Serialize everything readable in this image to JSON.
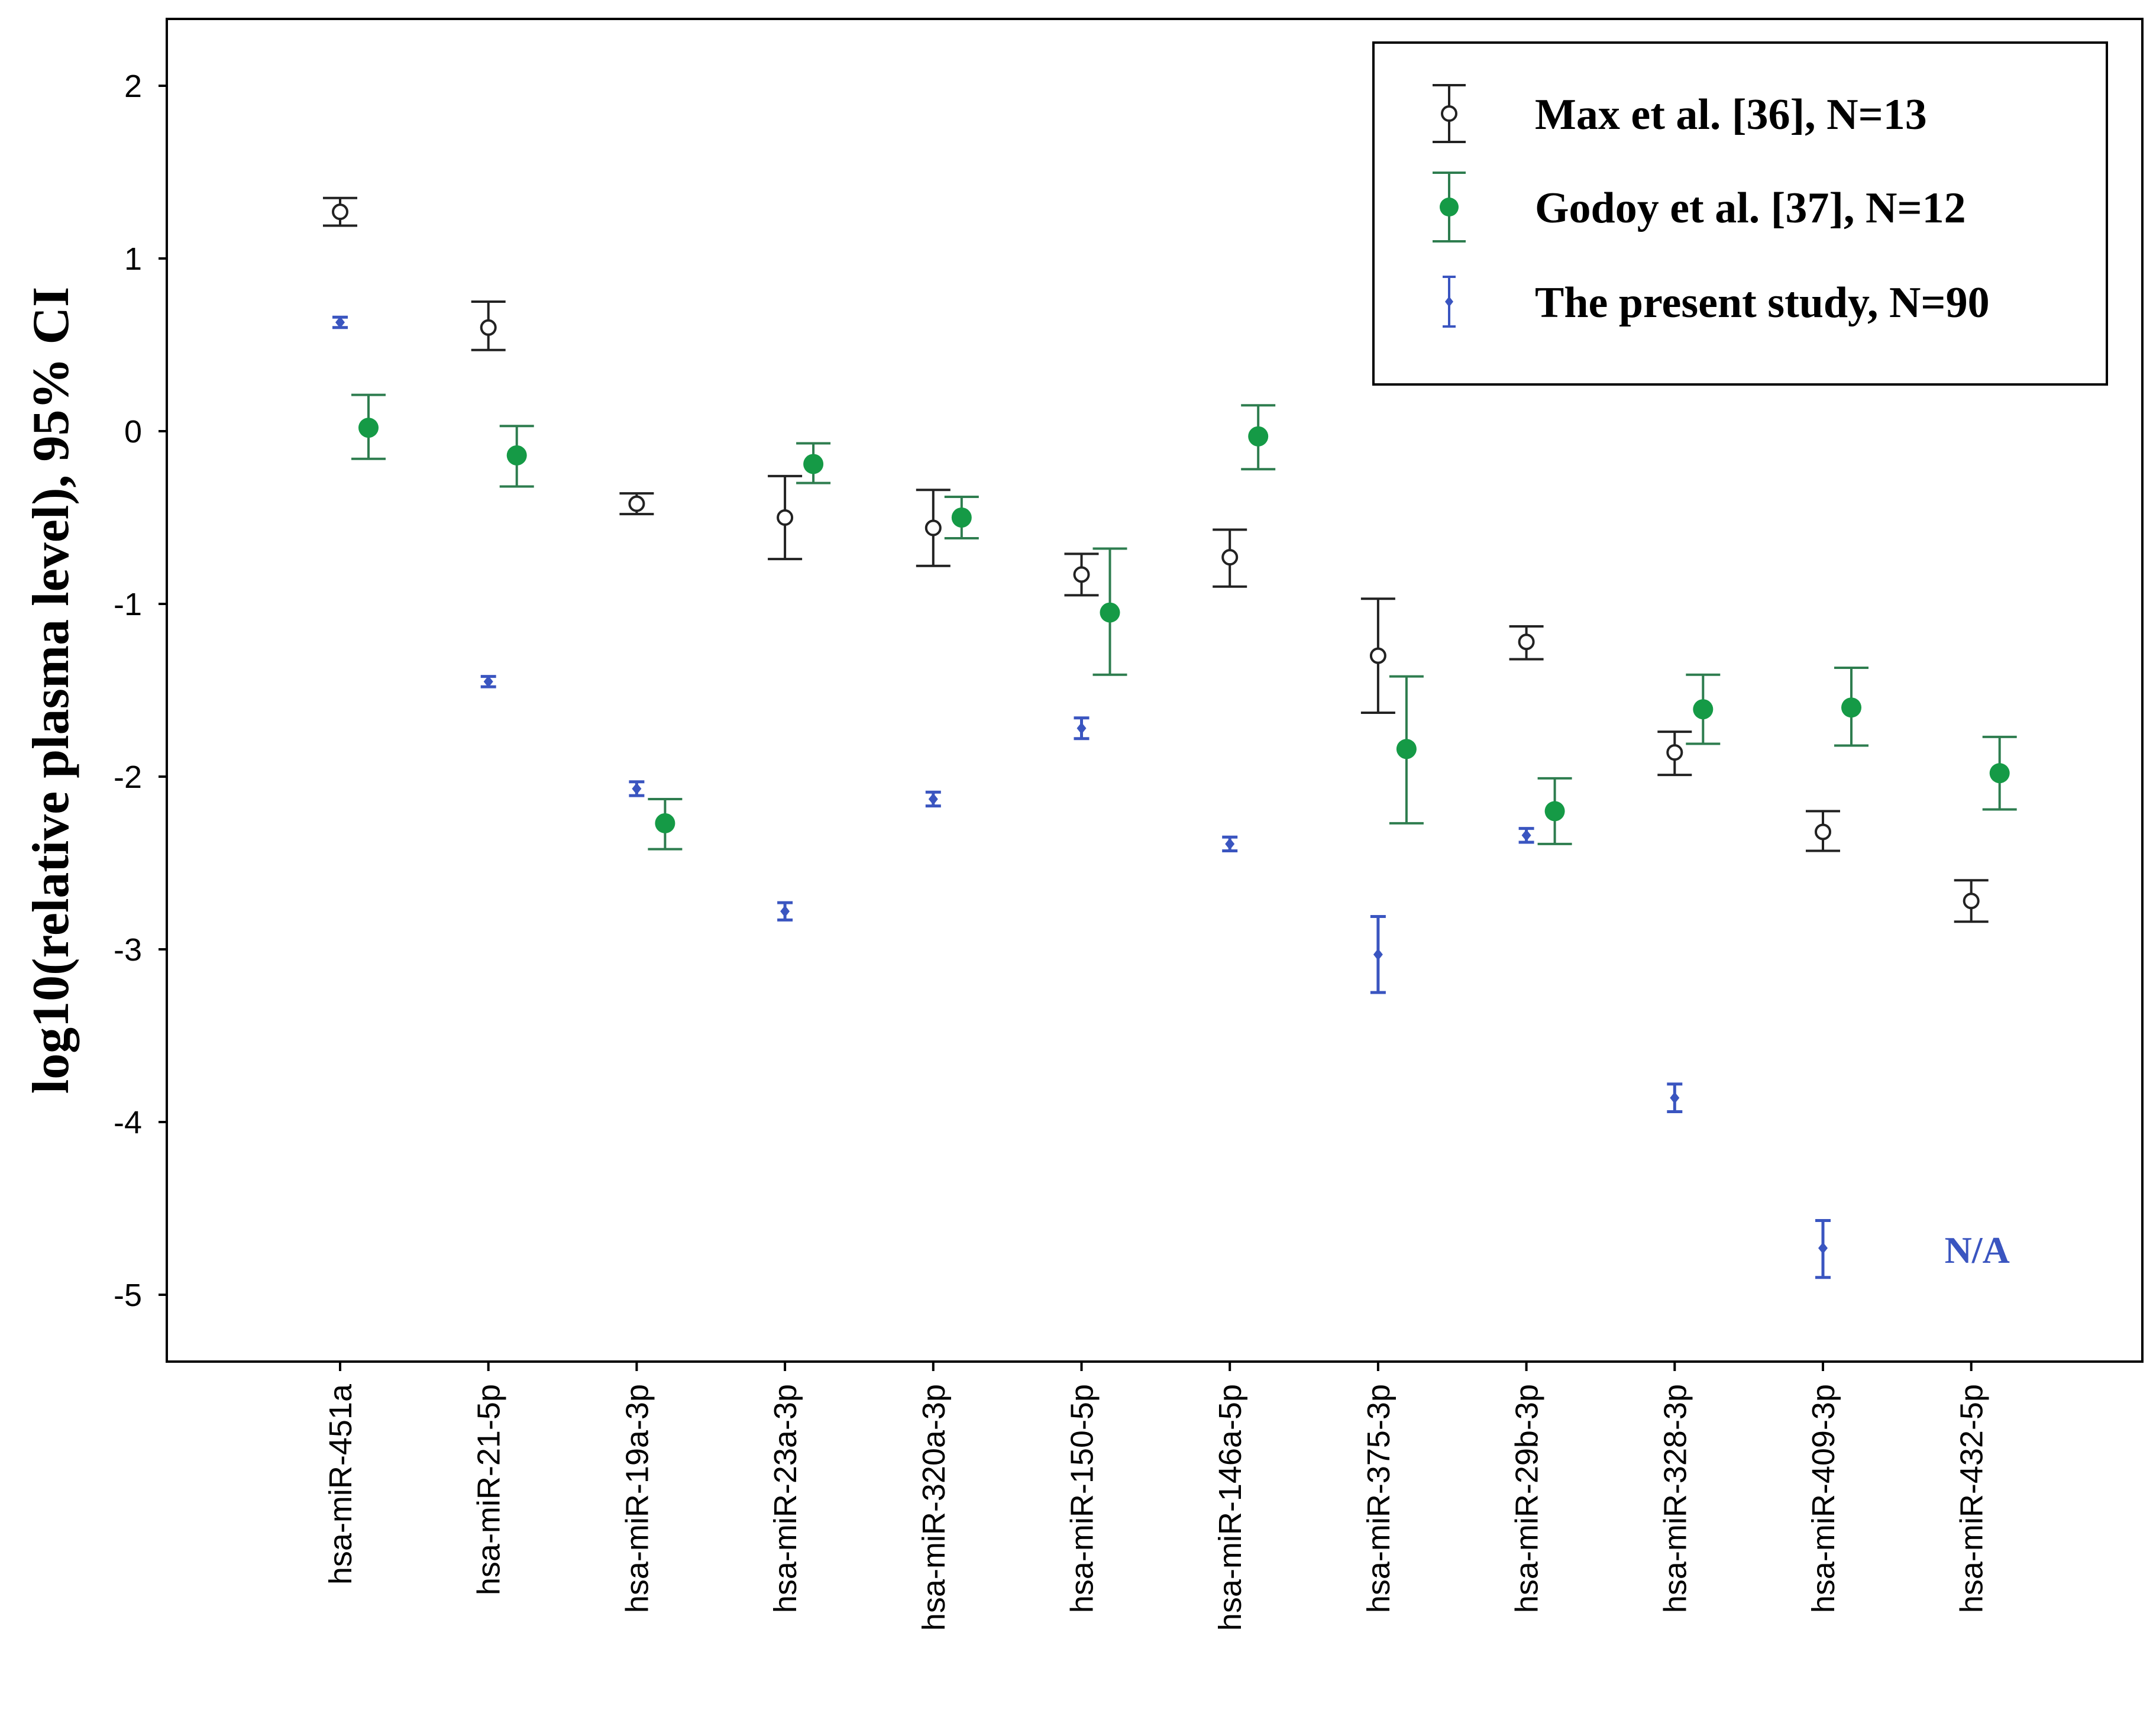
{
  "chart_data": {
    "type": "scatter",
    "title": "",
    "xlabel": "",
    "ylabel": "log10(relative plasma level), 95% CI",
    "ylim": [
      -5.4,
      2.4
    ],
    "yticks": [
      2,
      1,
      0,
      -1,
      -2,
      -3,
      -4,
      -5
    ],
    "ytick_labels": [
      "2",
      "1",
      "0",
      "-1",
      "-2",
      "-3",
      "-4",
      "-5"
    ],
    "categories": [
      "hsa-miR-451a",
      "hsa-miR-21-5p",
      "hsa-miR-19a-3p",
      "hsa-miR-23a-3p",
      "hsa-miR-320a-3p",
      "hsa-miR-150-5p",
      "hsa-miR-146a-5p",
      "hsa-miR-375-3p",
      "hsa-miR-29b-3p",
      "hsa-miR-328-3p",
      "hsa-miR-409-3p",
      "hsa-miR-432-5p"
    ],
    "legend_position": "top-right",
    "series": [
      {
        "name": "Max et al. [36], N=13",
        "marker": "open-circle",
        "color": "#222222",
        "offset": 0,
        "values": [
          1.27,
          0.6,
          -0.42,
          -0.5,
          -0.56,
          -0.83,
          -0.73,
          -1.3,
          -1.22,
          -1.86,
          -2.32,
          -2.72
        ],
        "ci_low": [
          1.19,
          0.47,
          -0.48,
          -0.74,
          -0.78,
          -0.95,
          -0.9,
          -1.63,
          -1.32,
          -1.99,
          -2.43,
          -2.84
        ],
        "ci_high": [
          1.35,
          0.75,
          -0.36,
          -0.26,
          -0.34,
          -0.71,
          -0.57,
          -0.97,
          -1.13,
          -1.74,
          -2.2,
          -2.6
        ]
      },
      {
        "name": "Godoy et al. [37], N=12",
        "marker": "filled-circle",
        "color": "#159a46",
        "ci_color": "#2e7d4f",
        "offset": 1,
        "values": [
          0.02,
          -0.14,
          -2.27,
          -0.19,
          -0.5,
          -1.05,
          -0.03,
          -1.84,
          -2.2,
          -1.61,
          -1.6,
          -1.98
        ],
        "ci_low": [
          -0.16,
          -0.32,
          -2.42,
          -0.3,
          -0.62,
          -1.41,
          -0.22,
          -2.27,
          -2.39,
          -1.81,
          -1.82,
          -2.19
        ],
        "ci_high": [
          0.21,
          0.03,
          -2.13,
          -0.07,
          -0.38,
          -0.68,
          0.15,
          -1.42,
          -2.01,
          -1.41,
          -1.37,
          -1.77
        ]
      },
      {
        "name": "The present study, N=90",
        "marker": "diamond",
        "color": "#3a55c0",
        "offset": 0,
        "row_offset": 1,
        "values": [
          0.63,
          -1.45,
          -2.07,
          -2.78,
          -2.13,
          -1.72,
          -2.39,
          -3.03,
          -2.34,
          -3.86,
          -4.73
        ],
        "ci_low": [
          0.6,
          -1.48,
          -2.11,
          -2.83,
          -2.17,
          -1.78,
          -2.43,
          -3.25,
          -2.38,
          -3.94,
          -4.9
        ],
        "ci_high": [
          0.66,
          -1.42,
          -2.03,
          -2.73,
          -2.09,
          -1.66,
          -2.35,
          -2.81,
          -2.3,
          -3.78,
          -4.57
        ]
      }
    ],
    "annotations": [
      {
        "text": "N/A",
        "category_index": 11,
        "y": -4.74,
        "color": "#3a55c0"
      }
    ]
  }
}
